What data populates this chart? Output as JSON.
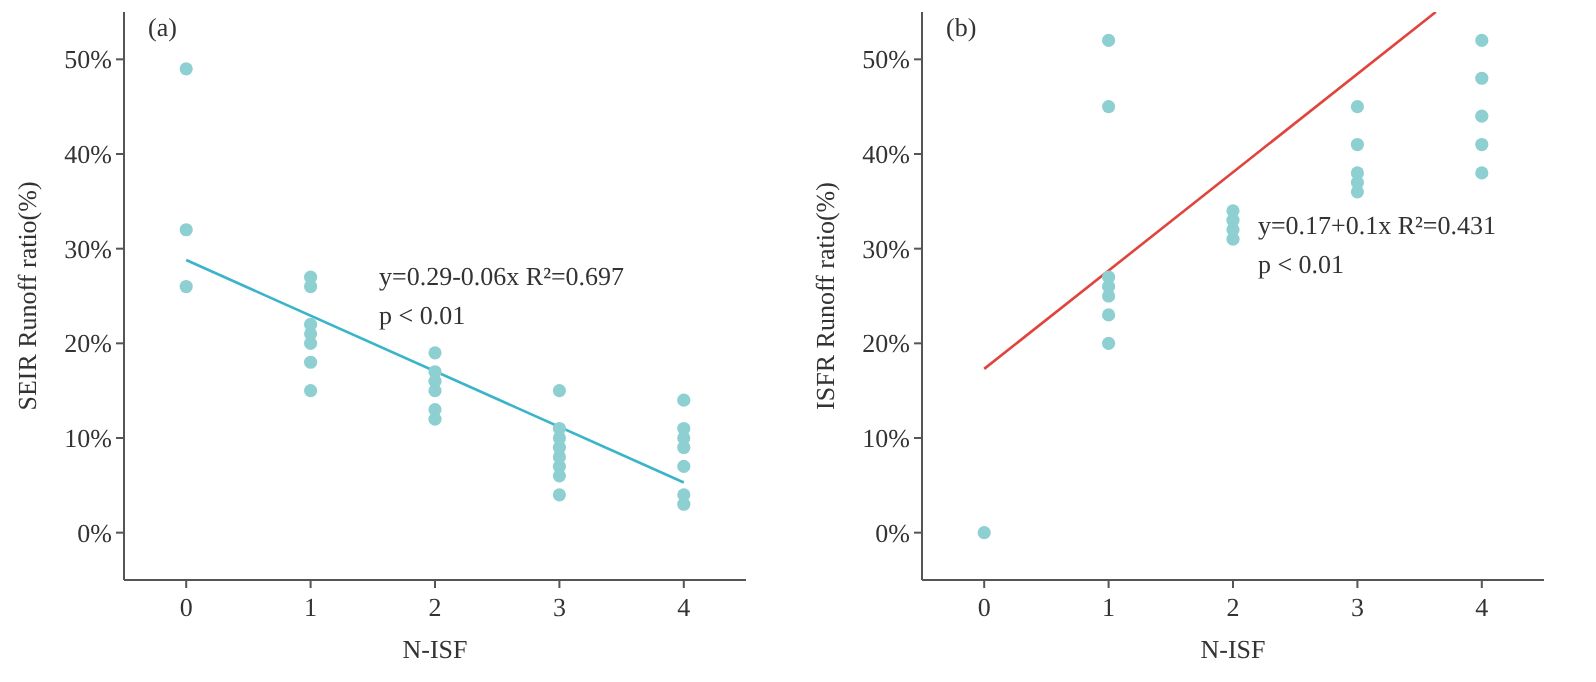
{
  "chart_data": [
    {
      "type": "scatter",
      "title": "(a)",
      "xlabel": "N-ISF",
      "ylabel": "SEIR Runoff ratio(%)",
      "xlim": [
        -0.5,
        4.5
      ],
      "xticks": [
        0,
        1,
        2,
        3,
        4
      ],
      "ylim": [
        -5,
        55
      ],
      "yticks": [
        {
          "value": 0,
          "label": "0%"
        },
        {
          "value": 10,
          "label": "10%"
        },
        {
          "value": 20,
          "label": "20%"
        },
        {
          "value": 30,
          "label": "30%"
        },
        {
          "value": 40,
          "label": "40%"
        },
        {
          "value": 50,
          "label": "50%"
        }
      ],
      "grid": false,
      "annotations": [
        "y=0.29-0.06x   R²=0.697",
        "p < 0.01"
      ],
      "series": [
        {
          "type": "scatter",
          "marker": "circle",
          "color": "#8ecfd2",
          "x": [
            0,
            0,
            0,
            1,
            1,
            1,
            1,
            1,
            1,
            1,
            2,
            2,
            2,
            2,
            2,
            2,
            3,
            3,
            3,
            3,
            3,
            3,
            3,
            3,
            4,
            4,
            4,
            4,
            4,
            4,
            4
          ],
          "values": [
            49,
            32,
            26,
            27,
            26,
            22,
            21,
            20,
            18,
            15,
            19,
            17,
            16,
            15,
            13,
            12,
            15,
            11,
            10,
            9,
            8,
            7,
            6,
            4,
            14,
            11,
            10,
            9,
            7,
            4,
            3
          ]
        },
        {
          "type": "line",
          "color": "#3ab4c9",
          "x": [
            0,
            4
          ],
          "values": [
            28.8,
            5.3
          ]
        }
      ]
    },
    {
      "type": "scatter",
      "title": "(b)",
      "xlabel": "N-ISF",
      "ylabel": "ISFR Runoff ratio(%)",
      "xlim": [
        -0.5,
        4.5
      ],
      "xticks": [
        0,
        1,
        2,
        3,
        4
      ],
      "ylim": [
        -5,
        55
      ],
      "yticks": [
        {
          "value": 0,
          "label": "0%"
        },
        {
          "value": 10,
          "label": "10%"
        },
        {
          "value": 20,
          "label": "20%"
        },
        {
          "value": 30,
          "label": "30%"
        },
        {
          "value": 40,
          "label": "40%"
        },
        {
          "value": 50,
          "label": "50%"
        }
      ],
      "grid": false,
      "annotations": [
        "y=0.17+0.1x   R²=0.431",
        "p < 0.01"
      ],
      "series": [
        {
          "type": "scatter",
          "marker": "circle",
          "color": "#8ecfd2",
          "x": [
            0,
            1,
            1,
            1,
            1,
            1,
            1,
            1,
            2,
            2,
            2,
            2,
            3,
            3,
            3,
            3,
            3,
            4,
            4,
            4,
            4,
            4
          ],
          "values": [
            0,
            52,
            45,
            27,
            26,
            25,
            23,
            20,
            34,
            33,
            32,
            31,
            45,
            41,
            38,
            37,
            36,
            52,
            48,
            44,
            41,
            38
          ]
        },
        {
          "type": "line",
          "color": "#e0443c",
          "x": [
            0,
            3.63
          ],
          "values": [
            17.3,
            55
          ]
        }
      ]
    }
  ]
}
